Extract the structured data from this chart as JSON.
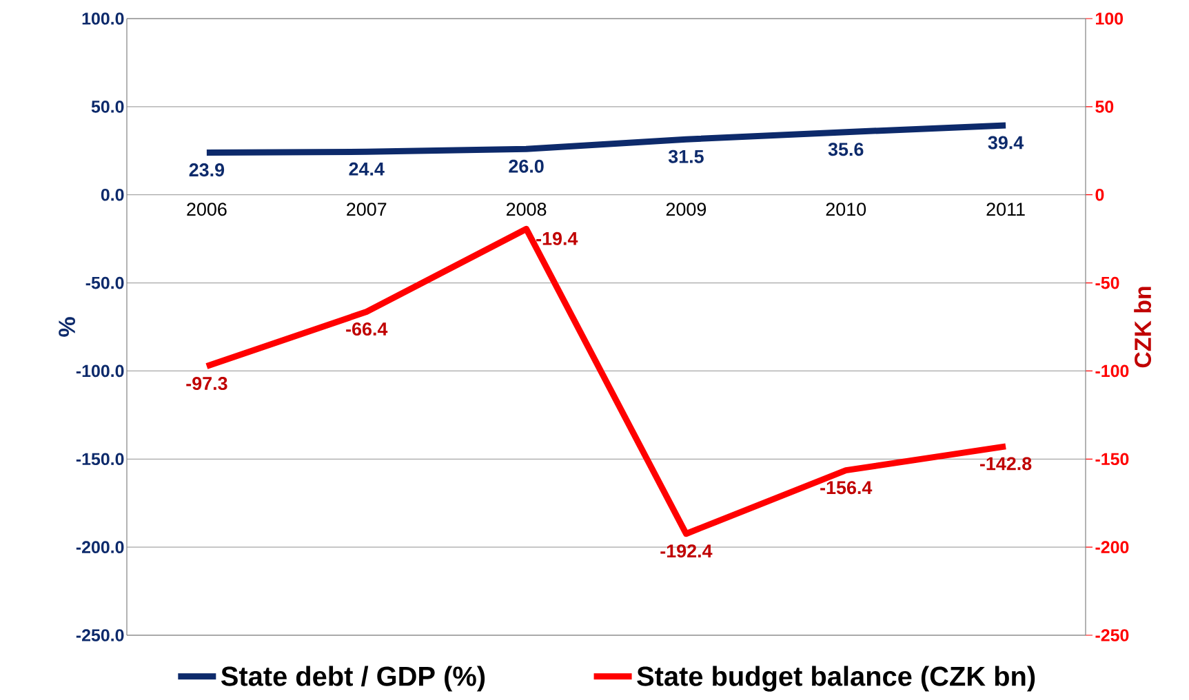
{
  "chart_data": {
    "type": "line",
    "categories": [
      "2006",
      "2007",
      "2008",
      "2009",
      "2010",
      "2011"
    ],
    "series": [
      {
        "name": "State debt / GDP (%)",
        "color": "#0d2a6b",
        "values": [
          23.9,
          24.4,
          26.0,
          31.5,
          35.6,
          39.4
        ],
        "value_labels": [
          "23.9",
          "24.4",
          "26.0",
          "31.5",
          "35.6",
          "39.4"
        ]
      },
      {
        "name": "State budget balance (CZK bn)",
        "color": "#ff0000",
        "axis": "y2",
        "values": [
          -97.3,
          -66.4,
          -19.4,
          -192.4,
          -156.4,
          -142.8
        ],
        "value_labels": [
          "-97.3",
          "-66.4",
          "-19.4",
          "-192.4",
          "-156.4",
          "-142.8"
        ]
      }
    ],
    "ylabel": "%",
    "y2label": "CZK bn",
    "ylim": [
      -250,
      100
    ],
    "yticks": [
      {
        "value": 100,
        "label": "100.0"
      },
      {
        "value": 50,
        "label": "50.0"
      },
      {
        "value": 0,
        "label": "0.0"
      },
      {
        "value": -50,
        "label": "-50.0"
      },
      {
        "value": -100,
        "label": "-100.0"
      },
      {
        "value": -150,
        "label": "-150.0"
      },
      {
        "value": -200,
        "label": "-200.0"
      },
      {
        "value": -250,
        "label": "-250.0"
      }
    ],
    "y2lim": [
      -250,
      100
    ],
    "y2ticks": [
      100,
      50,
      0,
      -50,
      -100,
      -150,
      -200,
      -250
    ],
    "grid": "y",
    "legend": "bottom",
    "marker": "none",
    "line_style": "solid"
  }
}
